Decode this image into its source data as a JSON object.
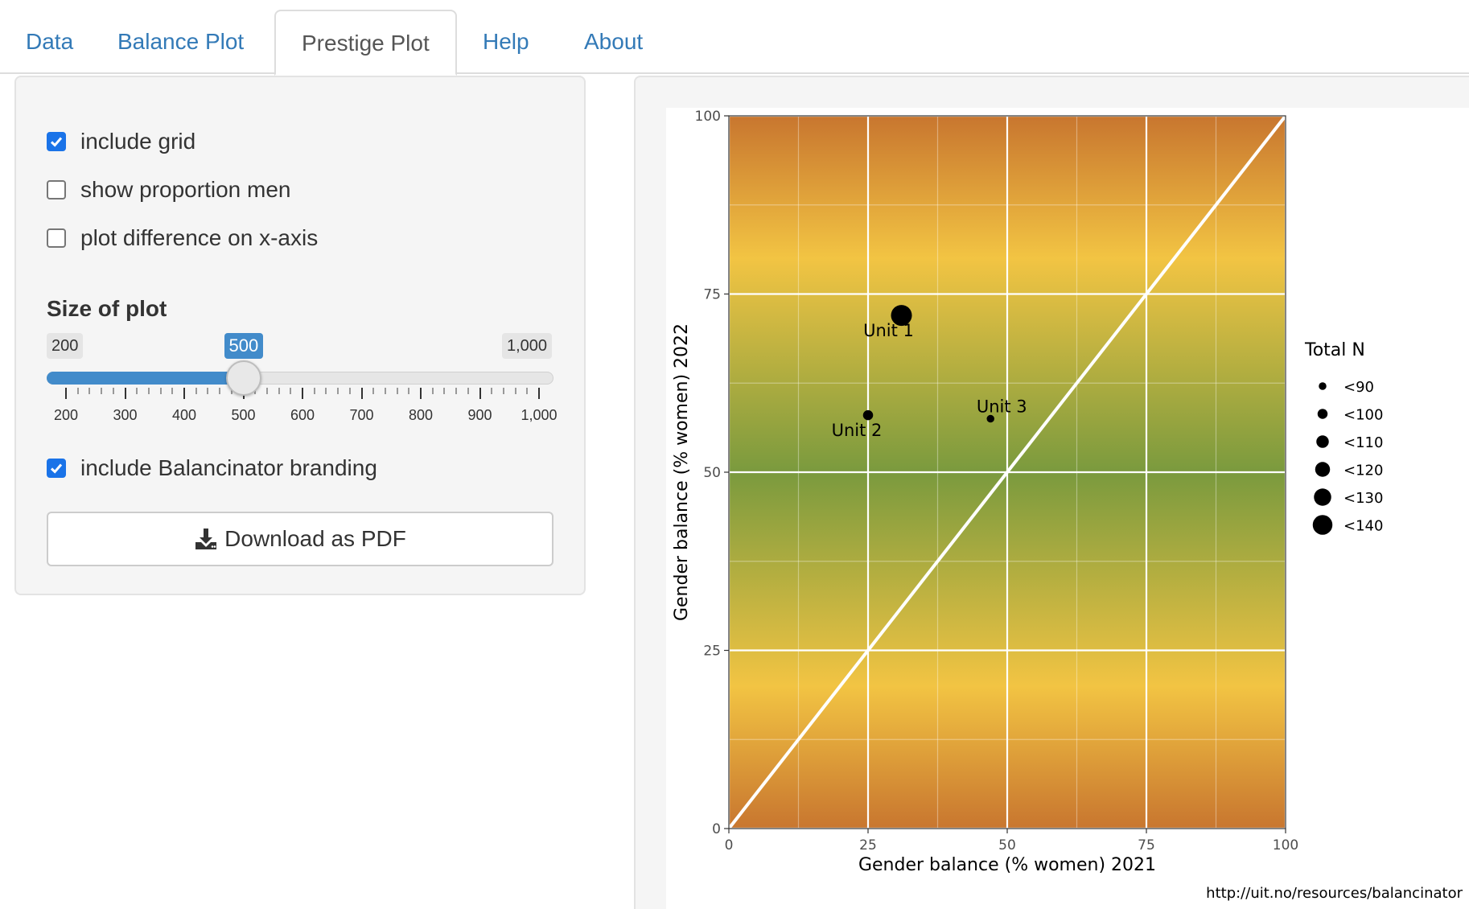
{
  "tabs": [
    {
      "label": "Data",
      "active": false
    },
    {
      "label": "Balance Plot",
      "active": false
    },
    {
      "label": "Prestige Plot",
      "active": true
    },
    {
      "label": "Help",
      "active": false
    },
    {
      "label": "About",
      "active": false
    }
  ],
  "options": {
    "include_grid": {
      "label": "include grid",
      "checked": true
    },
    "show_proportion_men": {
      "label": "show proportion men",
      "checked": false
    },
    "plot_difference": {
      "label": "plot difference on x-axis",
      "checked": false
    },
    "include_branding": {
      "label": "include Balancinator branding",
      "checked": true
    }
  },
  "size_slider": {
    "title": "Size of plot",
    "min_label": "200",
    "max_label": "1,000",
    "value_label": "500",
    "min": 200,
    "max": 1000,
    "value": 500,
    "tick_labels": [
      "200",
      "300",
      "400",
      "500",
      "600",
      "700",
      "800",
      "900",
      "1,000"
    ]
  },
  "download_button": {
    "label": "Download as PDF",
    "icon": "download-icon"
  },
  "chart_data": {
    "type": "scatter",
    "title": "",
    "xlabel": "Gender balance (% women) 2021",
    "ylabel": "Gender balance (% women) 2022",
    "xlim": [
      0,
      100
    ],
    "ylim": [
      0,
      100
    ],
    "x_ticks": [
      0,
      25,
      50,
      75,
      100
    ],
    "y_ticks": [
      0,
      25,
      50,
      75,
      100
    ],
    "grid": true,
    "reference_line": "y = x",
    "background": "gradient: green near 50, yellow near 20/80, orange at 0/100",
    "points": [
      {
        "label": "Unit 1",
        "x": 31,
        "y": 72,
        "total_n": 140
      },
      {
        "label": "Unit 2",
        "x": 25,
        "y": 58,
        "total_n": 95
      },
      {
        "label": "Unit 3",
        "x": 47,
        "y": 57.5,
        "total_n": 85
      }
    ],
    "legend": {
      "title": "Total N",
      "position": "right",
      "entries": [
        "<90",
        "<100",
        "<110",
        "<120",
        "<130",
        "<140"
      ]
    },
    "caption": "http://uit.no/resources/balancinator"
  },
  "colors": {
    "accent": "#428bca",
    "link": "#337ab7",
    "checkbox": "#1a73e8",
    "plot_green": "#7a9a3e",
    "plot_yellow": "#f2c443",
    "plot_orange": "#c8762f"
  }
}
